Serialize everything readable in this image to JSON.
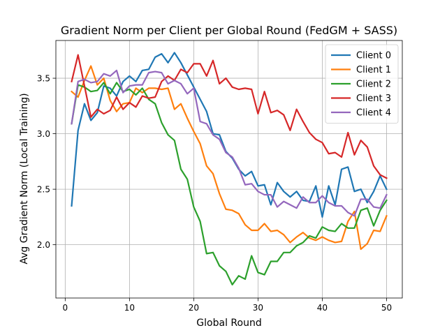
{
  "chart_data": {
    "type": "line",
    "title": "Gradient Norm per Client per Global Round (FedGM + SASS)",
    "xlabel": "Global Round",
    "ylabel": "Avg Gradient Norm (Local Training)",
    "xlim": [
      -1.45,
      52.45
    ],
    "ylim": [
      1.52,
      3.84
    ],
    "xticks": [
      0,
      10,
      20,
      30,
      40,
      50
    ],
    "yticks": [
      2.0,
      2.5,
      3.0,
      3.5
    ],
    "xtick_labels": [
      "0",
      "10",
      "20",
      "30",
      "40",
      "50"
    ],
    "ytick_labels": [
      "2.0",
      "2.5",
      "3.0",
      "3.5"
    ],
    "grid": true,
    "legend": "top-right",
    "x": [
      1,
      2,
      3,
      4,
      5,
      6,
      7,
      8,
      9,
      10,
      11,
      12,
      13,
      14,
      15,
      16,
      17,
      18,
      19,
      20,
      21,
      22,
      23,
      24,
      25,
      26,
      27,
      28,
      29,
      30,
      31,
      32,
      33,
      34,
      35,
      36,
      37,
      38,
      39,
      40,
      41,
      42,
      43,
      44,
      45,
      46,
      47,
      48,
      49,
      50
    ],
    "series": [
      {
        "name": "Client 0",
        "color": "#1f77b4",
        "values": [
          2.35,
          3.03,
          3.27,
          3.12,
          3.19,
          3.43,
          3.41,
          3.34,
          3.47,
          3.52,
          3.47,
          3.57,
          3.58,
          3.69,
          3.72,
          3.64,
          3.73,
          3.64,
          3.53,
          3.42,
          3.31,
          3.2,
          3.0,
          2.99,
          2.84,
          2.78,
          2.68,
          2.62,
          2.66,
          2.53,
          2.54,
          2.36,
          2.56,
          2.48,
          2.43,
          2.48,
          2.4,
          2.39,
          2.53,
          2.25,
          2.53,
          2.36,
          2.68,
          2.7,
          2.48,
          2.5,
          2.38,
          2.48,
          2.62,
          2.5
        ]
      },
      {
        "name": "Client 1",
        "color": "#ff7f0e",
        "values": [
          3.38,
          3.33,
          3.48,
          3.61,
          3.44,
          3.5,
          3.3,
          3.2,
          3.27,
          3.28,
          3.41,
          3.37,
          3.41,
          3.41,
          3.4,
          3.41,
          3.22,
          3.27,
          3.14,
          3.02,
          2.91,
          2.71,
          2.64,
          2.46,
          2.32,
          2.31,
          2.28,
          2.18,
          2.13,
          2.13,
          2.19,
          2.12,
          2.13,
          2.09,
          2.02,
          2.07,
          2.11,
          2.06,
          2.04,
          2.07,
          2.04,
          2.02,
          2.03,
          2.21,
          2.3,
          1.96,
          2.01,
          2.13,
          2.12,
          2.26
        ]
      },
      {
        "name": "Client 2",
        "color": "#2ca02c",
        "values": [
          3.09,
          3.44,
          3.42,
          3.38,
          3.39,
          3.46,
          3.36,
          3.46,
          3.38,
          3.4,
          3.35,
          3.41,
          3.31,
          3.27,
          3.1,
          2.99,
          2.94,
          2.68,
          2.59,
          2.34,
          2.21,
          1.92,
          1.93,
          1.81,
          1.76,
          1.64,
          1.72,
          1.69,
          1.9,
          1.75,
          1.73,
          1.85,
          1.85,
          1.93,
          1.93,
          1.99,
          2.02,
          2.08,
          2.06,
          2.16,
          2.13,
          2.12,
          2.19,
          2.15,
          2.15,
          2.31,
          2.33,
          2.17,
          2.31,
          2.4
        ]
      },
      {
        "name": "Client 3",
        "color": "#d62728",
        "values": [
          3.47,
          3.71,
          3.43,
          3.15,
          3.22,
          3.18,
          3.21,
          3.33,
          3.22,
          3.28,
          3.24,
          3.34,
          3.32,
          3.33,
          3.47,
          3.52,
          3.48,
          3.58,
          3.55,
          3.63,
          3.63,
          3.52,
          3.66,
          3.45,
          3.5,
          3.42,
          3.4,
          3.41,
          3.4,
          3.18,
          3.38,
          3.19,
          3.21,
          3.17,
          3.03,
          3.22,
          3.11,
          3.01,
          2.95,
          2.92,
          2.82,
          2.83,
          2.79,
          3.01,
          2.81,
          2.94,
          2.88,
          2.71,
          2.63,
          2.6
        ]
      },
      {
        "name": "Client 4",
        "color": "#9467bd",
        "values": [
          3.09,
          3.47,
          3.49,
          3.46,
          3.47,
          3.54,
          3.52,
          3.57,
          3.37,
          3.43,
          3.44,
          3.44,
          3.55,
          3.56,
          3.55,
          3.45,
          3.48,
          3.45,
          3.36,
          3.41,
          3.11,
          3.09,
          2.99,
          2.95,
          2.83,
          2.79,
          2.69,
          2.54,
          2.55,
          2.48,
          2.45,
          2.45,
          2.34,
          2.39,
          2.36,
          2.33,
          2.43,
          2.38,
          2.38,
          2.44,
          2.38,
          2.35,
          2.35,
          2.29,
          2.26,
          2.41,
          2.41,
          2.34,
          2.33,
          2.45
        ]
      }
    ]
  }
}
